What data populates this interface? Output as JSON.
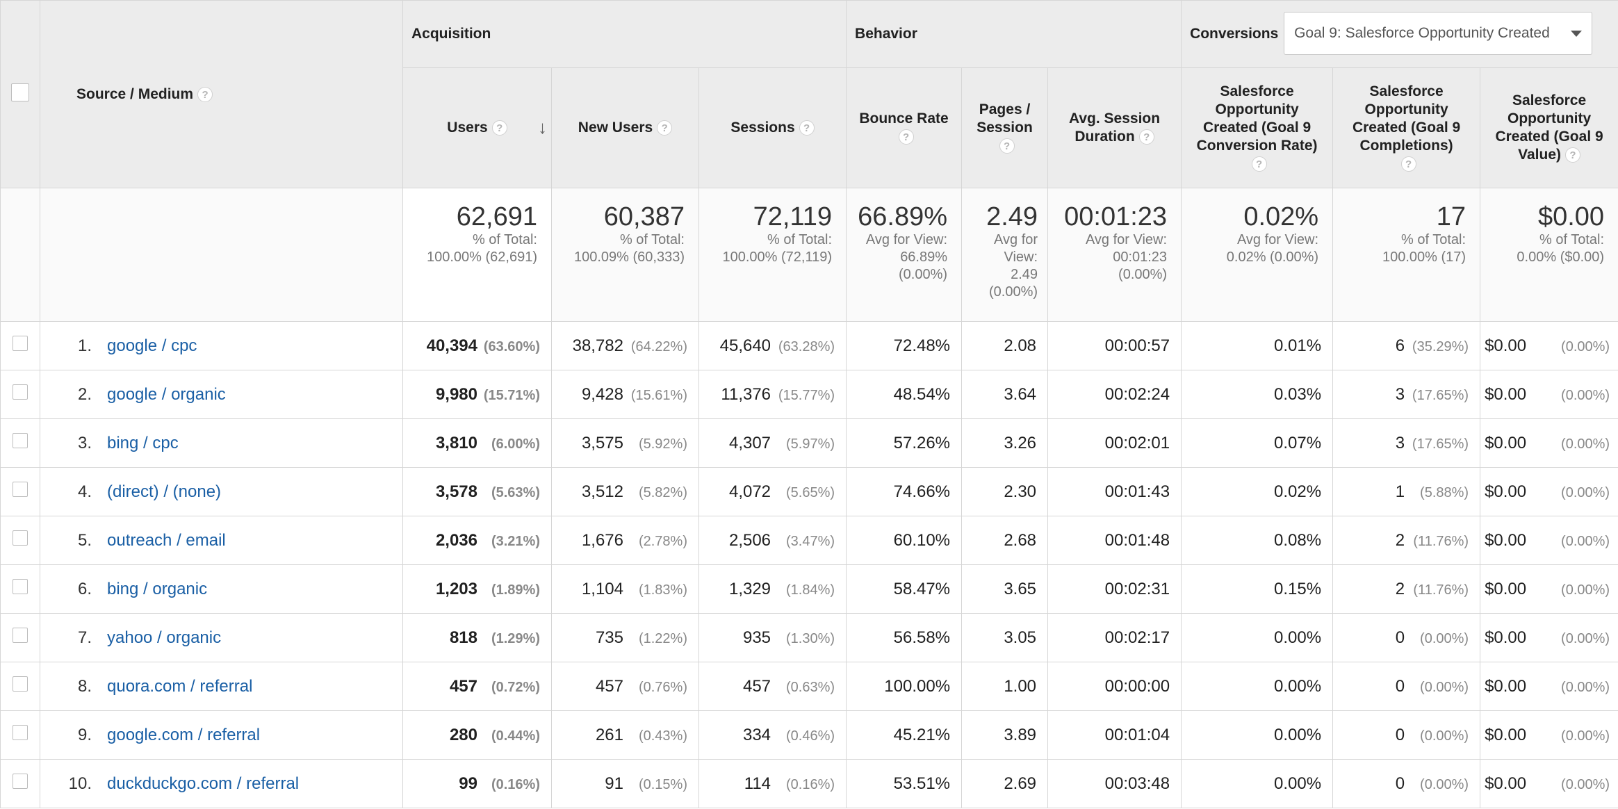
{
  "headers": {
    "source_medium": "Source / Medium",
    "acquisition": "Acquisition",
    "behavior": "Behavior",
    "conversions": "Conversions",
    "goal_dropdown": "Goal 9: Salesforce Opportunity Created",
    "users": "Users",
    "new_users": "New Users",
    "sessions": "Sessions",
    "bounce_rate": "Bounce Rate",
    "pages_session": "Pages / Session",
    "avg_session_duration": "Avg. Session Duration",
    "conv_rate": "Salesforce Opportunity Created (Goal 9 Conversion Rate)",
    "completions": "Salesforce Opportunity Created (Goal 9 Completions)",
    "value": "Salesforce Opportunity Created (Goal 9 Value)",
    "help_glyph": "?"
  },
  "icons": {
    "sort": "arrow-down-icon",
    "help": "question-icon",
    "dropdown": "caret-down-icon"
  },
  "totals": {
    "users": {
      "value": "62,691",
      "sub1": "% of Total:",
      "sub2": "100.00% (62,691)"
    },
    "new_users": {
      "value": "60,387",
      "sub1": "% of Total:",
      "sub2": "100.09% (60,333)"
    },
    "sessions": {
      "value": "72,119",
      "sub1": "% of Total:",
      "sub2": "100.00% (72,119)"
    },
    "bounce_rate": {
      "value": "66.89%",
      "sub1": "Avg for View:",
      "sub2": "66.89%",
      "sub3": "(0.00%)"
    },
    "pages_session": {
      "value": "2.49",
      "sub1": "Avg for",
      "sub2": "View:",
      "sub3": "2.49",
      "sub4": "(0.00%)"
    },
    "avg_session_duration": {
      "value": "00:01:23",
      "sub1": "Avg for View:",
      "sub2": "00:01:23",
      "sub3": "(0.00%)"
    },
    "conv_rate": {
      "value": "0.02%",
      "sub1": "Avg for View:",
      "sub2": "0.02% (0.00%)"
    },
    "completions": {
      "value": "17",
      "sub1": "% of Total:",
      "sub2": "100.00% (17)"
    },
    "value": {
      "value": "$0.00",
      "sub1": "% of Total:",
      "sub2": "0.00% ($0.00)"
    }
  },
  "rows": [
    {
      "idx": "1.",
      "source": "google / cpc",
      "users": "40,394",
      "users_pct": "(63.60%)",
      "new_users": "38,782",
      "new_users_pct": "(64.22%)",
      "sessions": "45,640",
      "sessions_pct": "(63.28%)",
      "bounce": "72.48%",
      "pages": "2.08",
      "duration": "00:00:57",
      "conv": "0.01%",
      "comp": "6",
      "comp_pct": "(35.29%)",
      "value": "$0.00",
      "value_pct": "(0.00%)"
    },
    {
      "idx": "2.",
      "source": "google / organic",
      "users": "9,980",
      "users_pct": "(15.71%)",
      "new_users": "9,428",
      "new_users_pct": "(15.61%)",
      "sessions": "11,376",
      "sessions_pct": "(15.77%)",
      "bounce": "48.54%",
      "pages": "3.64",
      "duration": "00:02:24",
      "conv": "0.03%",
      "comp": "3",
      "comp_pct": "(17.65%)",
      "value": "$0.00",
      "value_pct": "(0.00%)"
    },
    {
      "idx": "3.",
      "source": "bing / cpc",
      "users": "3,810",
      "users_pct": "(6.00%)",
      "new_users": "3,575",
      "new_users_pct": "(5.92%)",
      "sessions": "4,307",
      "sessions_pct": "(5.97%)",
      "bounce": "57.26%",
      "pages": "3.26",
      "duration": "00:02:01",
      "conv": "0.07%",
      "comp": "3",
      "comp_pct": "(17.65%)",
      "value": "$0.00",
      "value_pct": "(0.00%)"
    },
    {
      "idx": "4.",
      "source": "(direct) / (none)",
      "users": "3,578",
      "users_pct": "(5.63%)",
      "new_users": "3,512",
      "new_users_pct": "(5.82%)",
      "sessions": "4,072",
      "sessions_pct": "(5.65%)",
      "bounce": "74.66%",
      "pages": "2.30",
      "duration": "00:01:43",
      "conv": "0.02%",
      "comp": "1",
      "comp_pct": "(5.88%)",
      "value": "$0.00",
      "value_pct": "(0.00%)"
    },
    {
      "idx": "5.",
      "source": "outreach / email",
      "users": "2,036",
      "users_pct": "(3.21%)",
      "new_users": "1,676",
      "new_users_pct": "(2.78%)",
      "sessions": "2,506",
      "sessions_pct": "(3.47%)",
      "bounce": "60.10%",
      "pages": "2.68",
      "duration": "00:01:48",
      "conv": "0.08%",
      "comp": "2",
      "comp_pct": "(11.76%)",
      "value": "$0.00",
      "value_pct": "(0.00%)"
    },
    {
      "idx": "6.",
      "source": "bing / organic",
      "users": "1,203",
      "users_pct": "(1.89%)",
      "new_users": "1,104",
      "new_users_pct": "(1.83%)",
      "sessions": "1,329",
      "sessions_pct": "(1.84%)",
      "bounce": "58.47%",
      "pages": "3.65",
      "duration": "00:02:31",
      "conv": "0.15%",
      "comp": "2",
      "comp_pct": "(11.76%)",
      "value": "$0.00",
      "value_pct": "(0.00%)"
    },
    {
      "idx": "7.",
      "source": "yahoo / organic",
      "users": "818",
      "users_pct": "(1.29%)",
      "new_users": "735",
      "new_users_pct": "(1.22%)",
      "sessions": "935",
      "sessions_pct": "(1.30%)",
      "bounce": "56.58%",
      "pages": "3.05",
      "duration": "00:02:17",
      "conv": "0.00%",
      "comp": "0",
      "comp_pct": "(0.00%)",
      "value": "$0.00",
      "value_pct": "(0.00%)"
    },
    {
      "idx": "8.",
      "source": "quora.com / referral",
      "users": "457",
      "users_pct": "(0.72%)",
      "new_users": "457",
      "new_users_pct": "(0.76%)",
      "sessions": "457",
      "sessions_pct": "(0.63%)",
      "bounce": "100.00%",
      "pages": "1.00",
      "duration": "00:00:00",
      "conv": "0.00%",
      "comp": "0",
      "comp_pct": "(0.00%)",
      "value": "$0.00",
      "value_pct": "(0.00%)"
    },
    {
      "idx": "9.",
      "source": "google.com / referral",
      "users": "280",
      "users_pct": "(0.44%)",
      "new_users": "261",
      "new_users_pct": "(0.43%)",
      "sessions": "334",
      "sessions_pct": "(0.46%)",
      "bounce": "45.21%",
      "pages": "3.89",
      "duration": "00:01:04",
      "conv": "0.00%",
      "comp": "0",
      "comp_pct": "(0.00%)",
      "value": "$0.00",
      "value_pct": "(0.00%)"
    },
    {
      "idx": "10.",
      "source": "duckduckgo.com / referral",
      "users": "99",
      "users_pct": "(0.16%)",
      "new_users": "91",
      "new_users_pct": "(0.15%)",
      "sessions": "114",
      "sessions_pct": "(0.16%)",
      "bounce": "53.51%",
      "pages": "2.69",
      "duration": "00:03:48",
      "conv": "0.00%",
      "comp": "0",
      "comp_pct": "(0.00%)",
      "value": "$0.00",
      "value_pct": "(0.00%)"
    }
  ]
}
